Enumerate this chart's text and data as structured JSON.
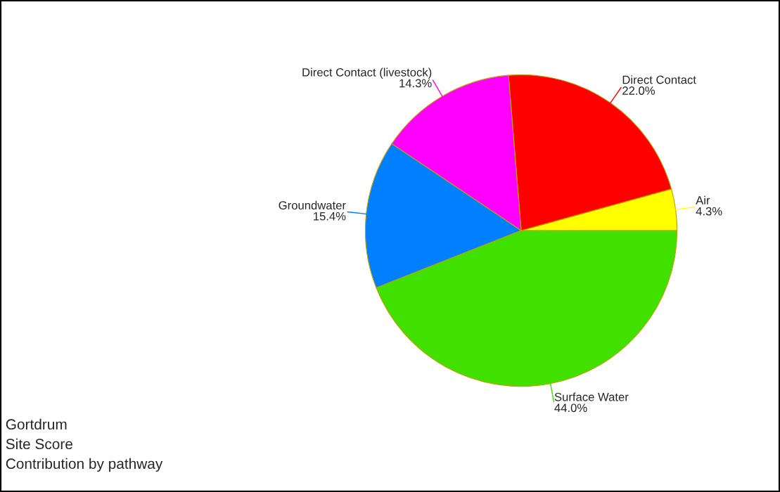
{
  "chart_data": {
    "type": "pie",
    "categories": [
      "Air",
      "Direct Contact",
      "Direct Contact (livestock)",
      "Groundwater",
      "Surface Water"
    ],
    "values": [
      4.3,
      22.0,
      14.3,
      15.4,
      44.0
    ],
    "value_labels": [
      "4.3%",
      "22.0%",
      "14.3%",
      "15.4%",
      "44.0%"
    ],
    "colors": [
      "#ffff00",
      "#ff0000",
      "#ff00ff",
      "#0080ff",
      "#40e000"
    ],
    "title": "Gortdrum",
    "subtitle": "Site Score",
    "annotations": [
      "Contribution by pathway"
    ]
  }
}
